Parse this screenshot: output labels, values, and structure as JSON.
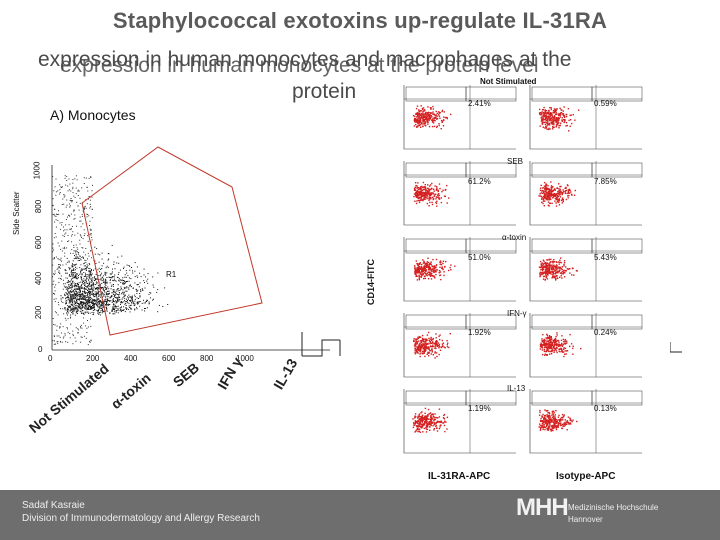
{
  "title": {
    "line1": "Staphylococcal exotoxins up-regulate IL-31RA",
    "line2": "expression in human monocytes and macrophages at the",
    "line2_ghost": "expression in human monocytes at the protein level",
    "line3": "protein"
  },
  "panel_a_label": "A) Monocytes",
  "scatter": {
    "y_label": "Side Scatter",
    "y_ticks": [
      "1000",
      "800",
      "600",
      "400",
      "200",
      "0"
    ],
    "x_ticks": [
      "0",
      "200",
      "400",
      "600",
      "800",
      "1000"
    ],
    "gate_label": "R1",
    "stimulations": [
      "Not Stimulated",
      "α-toxin",
      "SEB",
      "IFN γ",
      "IL-13"
    ]
  },
  "facs": {
    "header": "Not Stimulated",
    "y_axis_label": "CD14-FITC",
    "x_axis_left": "IL-31RA-APC",
    "x_axis_right": "Isotype-APC",
    "rows": [
      {
        "label": "Not Stimulated",
        "left_pct": "2.41%",
        "right_pct": "0.59%"
      },
      {
        "label": "SEB",
        "left_pct": "61.2%",
        "right_pct": "7.85%"
      },
      {
        "label": "α-toxin",
        "left_pct": "51.0%",
        "right_pct": "5.43%"
      },
      {
        "label": "IFN-γ",
        "left_pct": "1.92%",
        "right_pct": "0.24%"
      },
      {
        "label": "IL-13",
        "left_pct": "1.19%",
        "right_pct": "0.13%"
      }
    ]
  },
  "footer": {
    "name": "Sadaf Kasraie",
    "division": "Division of Immunodermatology and Allergy Research",
    "logo": "MHH",
    "logo_line1": "Medizinische Hochschule",
    "logo_line2": "Hannover"
  }
}
